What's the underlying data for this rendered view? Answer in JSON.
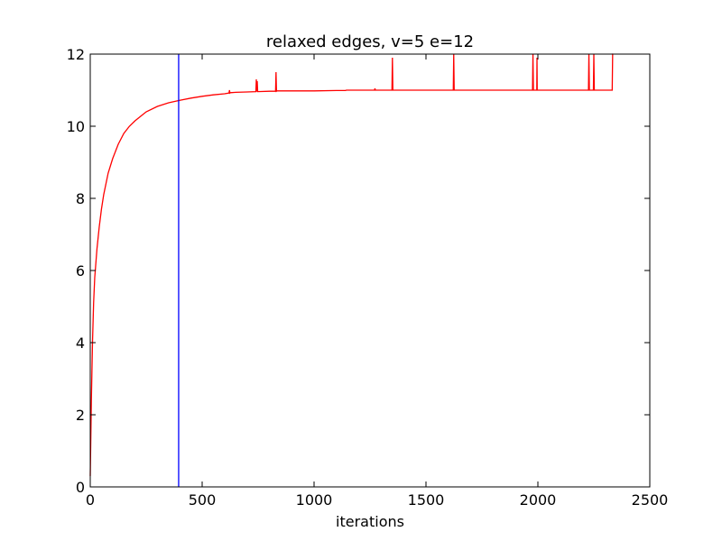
{
  "chart_data": {
    "type": "line",
    "title": "relaxed edges, v=5 e=12",
    "xlabel": "iterations",
    "ylabel": "",
    "xlim": [
      0,
      2500
    ],
    "ylim": [
      0,
      12
    ],
    "xticks": [
      0,
      500,
      1000,
      1500,
      2000,
      2500
    ],
    "yticks": [
      0,
      2,
      4,
      6,
      8,
      10,
      12
    ],
    "grid": false,
    "legend": "none",
    "series": [
      {
        "color": "#ff0000",
        "x": [
          0,
          5,
          10,
          15,
          20,
          30,
          40,
          50,
          60,
          80,
          100,
          125,
          150,
          175,
          200,
          250,
          300,
          350,
          400,
          450,
          500,
          550,
          600,
          620,
          622,
          624,
          626,
          650,
          700,
          740,
          742,
          744,
          746,
          748,
          800,
          828,
          830,
          832,
          834,
          900,
          1000,
          1100,
          1140,
          1145,
          1200,
          1270,
          1272,
          1274,
          1300,
          1348,
          1350,
          1352,
          1354,
          1400,
          1500,
          1600,
          1622,
          1624,
          1626,
          1628,
          1700,
          1800,
          1900,
          1976,
          1978,
          1980,
          1982,
          1995,
          1996,
          1997,
          2100,
          2200,
          2226,
          2228,
          2230,
          2232,
          2248,
          2250,
          2252,
          2254,
          2300,
          2332,
          2334,
          2336
        ],
        "y": [
          0.3,
          2.4,
          4.0,
          5.1,
          5.8,
          6.6,
          7.2,
          7.7,
          8.1,
          8.7,
          9.1,
          9.5,
          9.8,
          10.0,
          10.15,
          10.4,
          10.55,
          10.65,
          10.72,
          10.78,
          10.83,
          10.87,
          10.9,
          10.92,
          11.0,
          10.92,
          10.93,
          10.94,
          10.95,
          10.96,
          11.3,
          10.96,
          11.25,
          10.96,
          10.97,
          10.97,
          11.5,
          10.97,
          10.98,
          10.98,
          10.98,
          10.99,
          10.99,
          11.0,
          11.0,
          11.0,
          11.05,
          11.0,
          11.0,
          11.0,
          11.9,
          11.0,
          11.0,
          11.0,
          11.0,
          11.0,
          11.0,
          12.0,
          11.0,
          11.0,
          11.0,
          11.0,
          11.0,
          11.0,
          12.0,
          11.0,
          11.0,
          11.0,
          11.9,
          11.0,
          11.0,
          11.0,
          11.0,
          12.0,
          11.0,
          11.0,
          11.0,
          12.0,
          11.0,
          11.0,
          11.0,
          11.0,
          12.0,
          12.0
        ]
      },
      {
        "color": "#0000ff",
        "x": [
          395,
          395
        ],
        "y": [
          0,
          12
        ]
      }
    ]
  }
}
